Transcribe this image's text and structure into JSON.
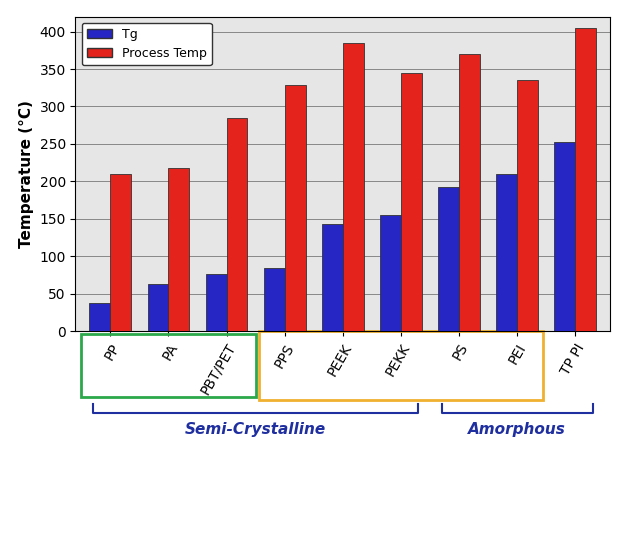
{
  "chart_data": {
    "type": "bar",
    "y_label": "Temperature (°C)",
    "categories": [
      "PP",
      "PA",
      "PBT/PET",
      "PPS",
      "PEEK",
      "PEKK",
      "PS",
      "PEI",
      "TP PI"
    ],
    "series": [
      {
        "name": "Tg",
        "color": "#2626c4",
        "values": [
          37,
          63,
          77,
          84,
          143,
          155,
          193,
          210,
          252
        ]
      },
      {
        "name": "Process Temp",
        "color": "#e3231c",
        "values": [
          210,
          218,
          285,
          328,
          385,
          345,
          370,
          335,
          405
        ]
      }
    ],
    "ylim": [
      0,
      420
    ],
    "yticks": [
      0,
      50,
      100,
      150,
      200,
      250,
      300,
      350,
      400
    ],
    "grid": true,
    "legend": "upper left",
    "boxes": [
      {
        "from": "PP",
        "to": "PBT/PET",
        "color": "#2ca84a"
      },
      {
        "from": "PPS",
        "to": "PEI",
        "color": "#f0b030"
      }
    ],
    "annotations": [
      {
        "text": "Semi-Crystalline",
        "from": "PP",
        "to": "PEKK",
        "color": "#1f2fa0"
      },
      {
        "text": "Amorphous",
        "from": "PS",
        "to": "TP PI",
        "color": "#1f2fa0"
      }
    ]
  }
}
